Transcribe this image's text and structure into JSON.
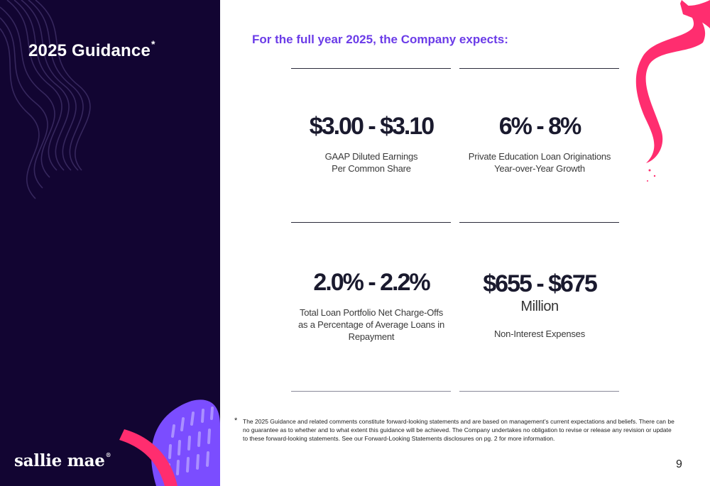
{
  "slide": {
    "title": "2025 Guidance",
    "title_marker": "*",
    "subtitle": "For the full year 2025, the Company expects:",
    "page_number": "9"
  },
  "brand": {
    "logo_text": "sallie mae",
    "logo_mark": "®"
  },
  "metrics": [
    {
      "value": "$3.00 - $3.10",
      "unit": "",
      "label_lines": [
        "GAAP Diluted Earnings",
        "Per Common Share"
      ]
    },
    {
      "value": "6% - 8%",
      "unit": "",
      "label_lines": [
        "Private Education Loan Originations",
        "Year-over-Year Growth"
      ]
    },
    {
      "value": "2.0% - 2.2%",
      "unit": "",
      "label_lines": [
        "Total Loan Portfolio Net Charge-Offs",
        "as a Percentage of Average Loans in",
        "Repayment"
      ]
    },
    {
      "value": "$655 - $675",
      "unit": "Million",
      "label_lines": [
        "Non-Interest Expenses"
      ]
    }
  ],
  "footnote": {
    "marker": "*",
    "text": "The 2025 Guidance and related comments constitute forward-looking statements and are based on management’s current expectations and beliefs.  There can be no guarantee as to whether and to what extent this guidance will be achieved.  The Company undertakes no obligation to revise or release any revision or update to these forward-looking statements.  See our Forward-Looking Statements disclosures on pg. 2 for more information."
  },
  "colors": {
    "sidebar": "#120532",
    "accent_purple": "#6b3ce8",
    "accent_pink": "#ff2d6f",
    "accent_violet": "#7b4dff"
  }
}
